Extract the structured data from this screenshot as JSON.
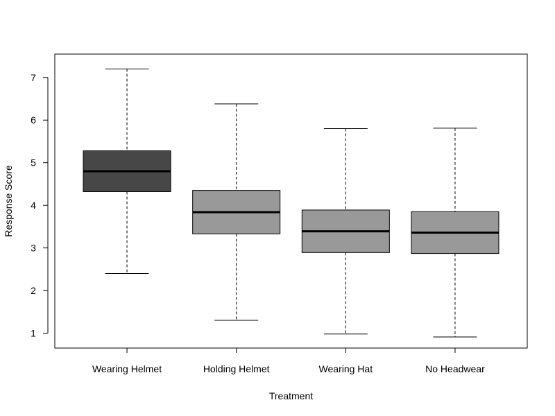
{
  "chart_data": {
    "type": "boxplot",
    "title": "",
    "xlabel": "Treatment",
    "ylabel": "Response Score",
    "ylim": [
      0.65,
      7.55
    ],
    "yticks": [
      1,
      2,
      3,
      4,
      5,
      6,
      7
    ],
    "grid": false,
    "legend": "none",
    "categories": [
      "Wearing Helmet",
      "Holding Helmet",
      "Wearing Hat",
      "No Headwear"
    ],
    "boxes": [
      {
        "category": "Wearing Helmet",
        "min": 2.4,
        "q1": 4.32,
        "median": 4.8,
        "q3": 5.28,
        "max": 7.2,
        "fill": "#474747"
      },
      {
        "category": "Holding Helmet",
        "min": 1.3,
        "q1": 3.33,
        "median": 3.84,
        "q3": 4.35,
        "max": 6.38,
        "fill": "#999999"
      },
      {
        "category": "Wearing Hat",
        "min": 0.98,
        "q1": 2.89,
        "median": 3.39,
        "q3": 3.89,
        "max": 5.8,
        "fill": "#999999"
      },
      {
        "category": "No Headwear",
        "min": 0.91,
        "q1": 2.87,
        "median": 3.36,
        "q3": 3.85,
        "max": 5.81,
        "fill": "#999999"
      }
    ]
  }
}
